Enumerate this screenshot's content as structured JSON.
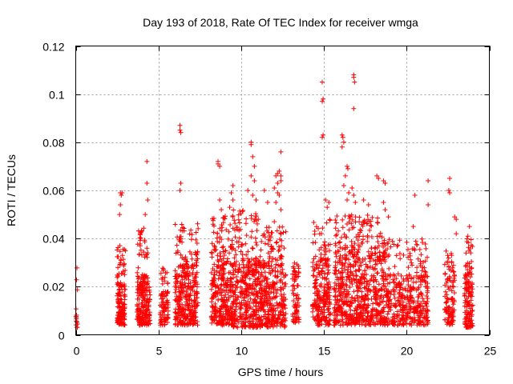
{
  "chart_data": {
    "type": "scatter",
    "title": "Day 193 of 2018, Rate Of TEC Index for receiver wmga",
    "xlabel": "GPS time / hours",
    "ylabel": "ROTI / TECUs",
    "xlim": [
      0,
      25
    ],
    "ylim": [
      0,
      0.12
    ],
    "xticks": [
      0,
      5,
      10,
      15,
      20,
      25
    ],
    "xtick_labels": [
      "0",
      "5",
      "10",
      "15",
      "20",
      "25"
    ],
    "yticks": [
      0,
      0.02,
      0.04,
      0.06,
      0.08,
      0.1,
      0.12
    ],
    "ytick_labels": [
      "0",
      "0.02",
      "0.04",
      "0.06",
      "0.08",
      "0.1",
      "0.12"
    ],
    "grid": true,
    "marker": "+",
    "color": "#ff0000",
    "series": [
      {
        "name": "ROTI",
        "clusters": [
          {
            "x": [
              0.0,
              0.12
            ],
            "y_core": [
              0.003,
              0.012
            ],
            "y_max": 0.028,
            "n": 14
          },
          {
            "x": [
              2.5,
              3.0
            ],
            "y_core": [
              0.004,
              0.022
            ],
            "y_max": 0.038,
            "n": 150
          },
          {
            "x": [
              3.7,
              4.5
            ],
            "y_core": [
              0.004,
              0.025
            ],
            "y_max": 0.046,
            "n": 220
          },
          {
            "x": [
              5.1,
              5.6
            ],
            "y_core": [
              0.004,
              0.018
            ],
            "y_max": 0.028,
            "n": 80
          },
          {
            "x": [
              6.0,
              7.4
            ],
            "y_core": [
              0.004,
              0.03
            ],
            "y_max": 0.047,
            "n": 330
          },
          {
            "x": [
              8.2,
              9.5
            ],
            "y_core": [
              0.004,
              0.03
            ],
            "y_max": 0.05,
            "n": 330
          },
          {
            "x": [
              9.5,
              11.2
            ],
            "y_core": [
              0.003,
              0.032
            ],
            "y_max": 0.052,
            "n": 400
          },
          {
            "x": [
              11.2,
              12.7
            ],
            "y_core": [
              0.003,
              0.03
            ],
            "y_max": 0.045,
            "n": 330
          },
          {
            "x": [
              13.1,
              13.5
            ],
            "y_core": [
              0.005,
              0.025
            ],
            "y_max": 0.03,
            "n": 70
          },
          {
            "x": [
              14.3,
              15.4
            ],
            "y_core": [
              0.004,
              0.032
            ],
            "y_max": 0.048,
            "n": 240
          },
          {
            "x": [
              15.6,
              18.8
            ],
            "y_core": [
              0.004,
              0.035
            ],
            "y_max": 0.05,
            "n": 700
          },
          {
            "x": [
              18.8,
              21.3
            ],
            "y_core": [
              0.004,
              0.025
            ],
            "y_max": 0.04,
            "n": 380
          },
          {
            "x": [
              22.3,
              22.9
            ],
            "y_core": [
              0.004,
              0.025
            ],
            "y_max": 0.035,
            "n": 110
          },
          {
            "x": [
              23.5,
              24.0
            ],
            "y_core": [
              0.003,
              0.025
            ],
            "y_max": 0.04,
            "n": 140
          }
        ],
        "outliers": [
          {
            "x": 2.7,
            "y": 0.059
          },
          {
            "x": 2.7,
            "y": 0.054
          },
          {
            "x": 2.65,
            "y": 0.05
          },
          {
            "x": 2.8,
            "y": 0.059
          },
          {
            "x": 2.75,
            "y": 0.058
          },
          {
            "x": 4.3,
            "y": 0.072
          },
          {
            "x": 4.3,
            "y": 0.063
          },
          {
            "x": 4.35,
            "y": 0.056
          },
          {
            "x": 4.2,
            "y": 0.05
          },
          {
            "x": 6.3,
            "y": 0.087
          },
          {
            "x": 6.3,
            "y": 0.085
          },
          {
            "x": 6.35,
            "y": 0.084
          },
          {
            "x": 6.35,
            "y": 0.063
          },
          {
            "x": 6.3,
            "y": 0.06
          },
          {
            "x": 8.6,
            "y": 0.072
          },
          {
            "x": 8.6,
            "y": 0.071
          },
          {
            "x": 8.7,
            "y": 0.07
          },
          {
            "x": 8.7,
            "y": 0.056
          },
          {
            "x": 8.8,
            "y": 0.052
          },
          {
            "x": 9.5,
            "y": 0.062
          },
          {
            "x": 9.4,
            "y": 0.059
          },
          {
            "x": 9.5,
            "y": 0.056
          },
          {
            "x": 9.3,
            "y": 0.053
          },
          {
            "x": 10.6,
            "y": 0.08
          },
          {
            "x": 10.6,
            "y": 0.079
          },
          {
            "x": 10.7,
            "y": 0.074
          },
          {
            "x": 10.8,
            "y": 0.07
          },
          {
            "x": 10.6,
            "y": 0.066
          },
          {
            "x": 10.8,
            "y": 0.064
          },
          {
            "x": 10.4,
            "y": 0.06
          },
          {
            "x": 10.7,
            "y": 0.058
          },
          {
            "x": 10.9,
            "y": 0.056
          },
          {
            "x": 11.4,
            "y": 0.06
          },
          {
            "x": 11.6,
            "y": 0.055
          },
          {
            "x": 12.1,
            "y": 0.066
          },
          {
            "x": 12.2,
            "y": 0.067
          },
          {
            "x": 12.3,
            "y": 0.068
          },
          {
            "x": 12.4,
            "y": 0.066
          },
          {
            "x": 12.2,
            "y": 0.063
          },
          {
            "x": 12.4,
            "y": 0.064
          },
          {
            "x": 12.0,
            "y": 0.061
          },
          {
            "x": 12.2,
            "y": 0.059
          },
          {
            "x": 12.3,
            "y": 0.058
          },
          {
            "x": 12.1,
            "y": 0.055
          },
          {
            "x": 12.4,
            "y": 0.052
          },
          {
            "x": 12.4,
            "y": 0.076
          },
          {
            "x": 12.0,
            "y": 0.047
          },
          {
            "x": 14.9,
            "y": 0.105
          },
          {
            "x": 14.95,
            "y": 0.098
          },
          {
            "x": 14.9,
            "y": 0.097
          },
          {
            "x": 14.95,
            "y": 0.083
          },
          {
            "x": 14.9,
            "y": 0.082
          },
          {
            "x": 15.1,
            "y": 0.056
          },
          {
            "x": 15.3,
            "y": 0.055
          },
          {
            "x": 15.2,
            "y": 0.053
          },
          {
            "x": 16.1,
            "y": 0.083
          },
          {
            "x": 16.15,
            "y": 0.082
          },
          {
            "x": 16.2,
            "y": 0.08
          },
          {
            "x": 16.1,
            "y": 0.078
          },
          {
            "x": 16.4,
            "y": 0.07
          },
          {
            "x": 16.45,
            "y": 0.069
          },
          {
            "x": 16.3,
            "y": 0.066
          },
          {
            "x": 16.2,
            "y": 0.062
          },
          {
            "x": 16.5,
            "y": 0.059
          },
          {
            "x": 16.4,
            "y": 0.056
          },
          {
            "x": 16.8,
            "y": 0.108
          },
          {
            "x": 16.8,
            "y": 0.107
          },
          {
            "x": 16.85,
            "y": 0.105
          },
          {
            "x": 16.8,
            "y": 0.094
          },
          {
            "x": 16.7,
            "y": 0.061
          },
          {
            "x": 16.8,
            "y": 0.058
          },
          {
            "x": 16.9,
            "y": 0.055
          },
          {
            "x": 17.4,
            "y": 0.056
          },
          {
            "x": 17.7,
            "y": 0.054
          },
          {
            "x": 18.2,
            "y": 0.066
          },
          {
            "x": 18.3,
            "y": 0.065
          },
          {
            "x": 18.6,
            "y": 0.064
          },
          {
            "x": 18.7,
            "y": 0.063
          },
          {
            "x": 18.6,
            "y": 0.055
          },
          {
            "x": 18.7,
            "y": 0.052
          },
          {
            "x": 18.9,
            "y": 0.049
          },
          {
            "x": 20.5,
            "y": 0.058
          },
          {
            "x": 20.4,
            "y": 0.045
          },
          {
            "x": 21.3,
            "y": 0.064
          },
          {
            "x": 21.3,
            "y": 0.054
          },
          {
            "x": 22.6,
            "y": 0.065
          },
          {
            "x": 22.55,
            "y": 0.06
          },
          {
            "x": 22.6,
            "y": 0.059
          },
          {
            "x": 22.9,
            "y": 0.049
          },
          {
            "x": 23.0,
            "y": 0.048
          },
          {
            "x": 23.0,
            "y": 0.042
          },
          {
            "x": 23.8,
            "y": 0.045
          },
          {
            "x": 23.7,
            "y": 0.041
          }
        ]
      }
    ]
  }
}
